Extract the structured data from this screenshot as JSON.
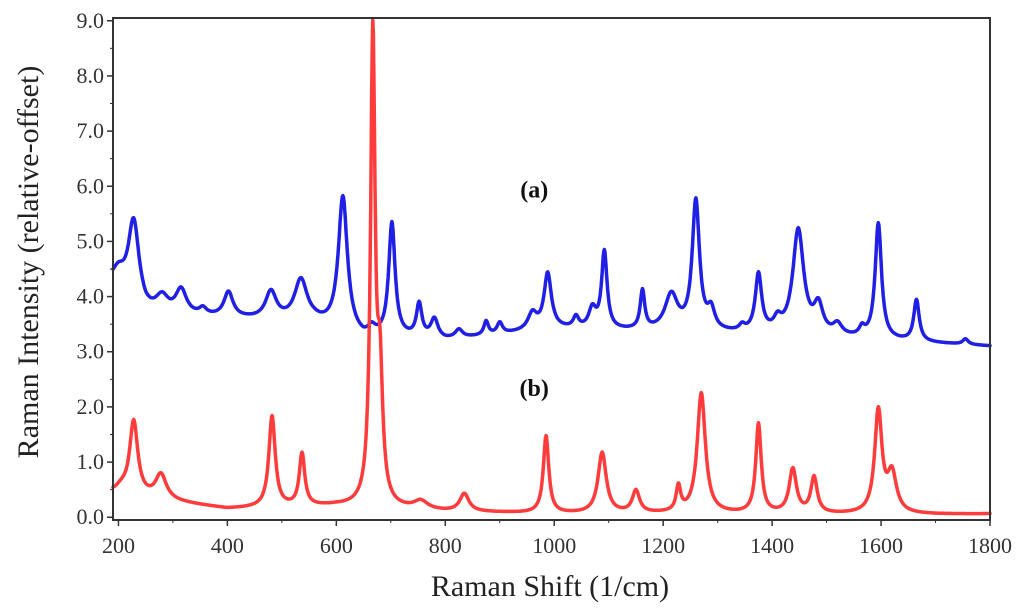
{
  "chart_data": {
    "type": "line",
    "title": "",
    "xlabel": "Raman Shift (1/cm)",
    "ylabel": "Raman Intensity (relative-offset)",
    "xlim": [
      190,
      1800
    ],
    "ylim": [
      -0.05,
      9.05
    ],
    "xticks": [
      200,
      400,
      600,
      800,
      1000,
      1200,
      1400,
      1600,
      1800
    ],
    "yticks": [
      0,
      1,
      2,
      3,
      4,
      5,
      6,
      7,
      8,
      9
    ],
    "ytick_labels": [
      "0.0",
      "1.0",
      "2.0",
      "3.0",
      "4.0",
      "5.0",
      "6.0",
      "7.0",
      "8.0",
      "9.0"
    ],
    "grid": false,
    "series": [
      {
        "name": "(a)",
        "label": "(a)",
        "label_pos": [
          1000,
          5.8
        ],
        "color": "#1f1fe6",
        "baseline": [
          [
            190,
            4.1
          ],
          [
            250,
            3.65
          ],
          [
            400,
            3.6
          ],
          [
            560,
            3.5
          ],
          [
            650,
            3.2
          ],
          [
            700,
            3.25
          ],
          [
            800,
            3.2
          ],
          [
            1000,
            3.4
          ],
          [
            1200,
            3.35
          ],
          [
            1400,
            3.3
          ],
          [
            1600,
            3.2
          ],
          [
            1700,
            3.15
          ],
          [
            1800,
            3.1
          ]
        ],
        "peaks": [
          [
            200,
            0.35,
            15
          ],
          [
            228,
            1.5,
            12
          ],
          [
            280,
            0.3,
            14
          ],
          [
            315,
            0.45,
            12
          ],
          [
            355,
            0.12,
            8
          ],
          [
            402,
            0.45,
            10
          ],
          [
            480,
            0.5,
            12
          ],
          [
            535,
            0.75,
            14
          ],
          [
            612,
            2.45,
            10
          ],
          [
            665,
            0.15,
            8
          ],
          [
            702,
            2.05,
            7
          ],
          [
            752,
            0.6,
            6
          ],
          [
            780,
            0.35,
            8
          ],
          [
            825,
            0.15,
            8
          ],
          [
            875,
            0.25,
            5
          ],
          [
            900,
            0.2,
            6
          ],
          [
            960,
            0.3,
            10
          ],
          [
            988,
            1.0,
            8
          ],
          [
            1040,
            0.2,
            6
          ],
          [
            1070,
            0.35,
            8
          ],
          [
            1092,
            1.4,
            6
          ],
          [
            1162,
            0.7,
            5
          ],
          [
            1215,
            0.65,
            14
          ],
          [
            1260,
            2.35,
            8
          ],
          [
            1288,
            0.35,
            8
          ],
          [
            1345,
            0.1,
            6
          ],
          [
            1375,
            1.05,
            7
          ],
          [
            1410,
            0.2,
            8
          ],
          [
            1448,
            1.9,
            12
          ],
          [
            1485,
            0.5,
            10
          ],
          [
            1520,
            0.2,
            10
          ],
          [
            1565,
            0.15,
            6
          ],
          [
            1595,
            2.1,
            7
          ],
          [
            1665,
            0.75,
            6
          ],
          [
            1755,
            0.1,
            6
          ]
        ]
      },
      {
        "name": "(b)",
        "label": "(b)",
        "label_pos": [
          1000,
          2.2
        ],
        "color": "#ff3b3b",
        "baseline": [
          [
            190,
            0.42
          ],
          [
            300,
            0.28
          ],
          [
            400,
            0.15
          ],
          [
            600,
            0.2
          ],
          [
            800,
            0.1
          ],
          [
            1000,
            0.06
          ],
          [
            1200,
            0.06
          ],
          [
            1500,
            0.05
          ],
          [
            1700,
            0.05
          ],
          [
            1800,
            0.06
          ]
        ],
        "peaks": [
          [
            205,
            0.1,
            12
          ],
          [
            228,
            1.35,
            9
          ],
          [
            278,
            0.45,
            12
          ],
          [
            482,
            1.65,
            7
          ],
          [
            537,
            0.95,
            6
          ],
          [
            667,
            8.45,
            5
          ],
          [
            680,
            2.2,
            6
          ],
          [
            755,
            0.15,
            15
          ],
          [
            835,
            0.32,
            10
          ],
          [
            985,
            1.4,
            6
          ],
          [
            1088,
            1.1,
            9
          ],
          [
            1150,
            0.4,
            8
          ],
          [
            1228,
            0.45,
            5
          ],
          [
            1270,
            2.18,
            9
          ],
          [
            1375,
            1.62,
            6
          ],
          [
            1438,
            0.8,
            8
          ],
          [
            1477,
            0.65,
            7
          ],
          [
            1595,
            1.85,
            8
          ],
          [
            1620,
            0.7,
            10
          ]
        ]
      }
    ]
  }
}
